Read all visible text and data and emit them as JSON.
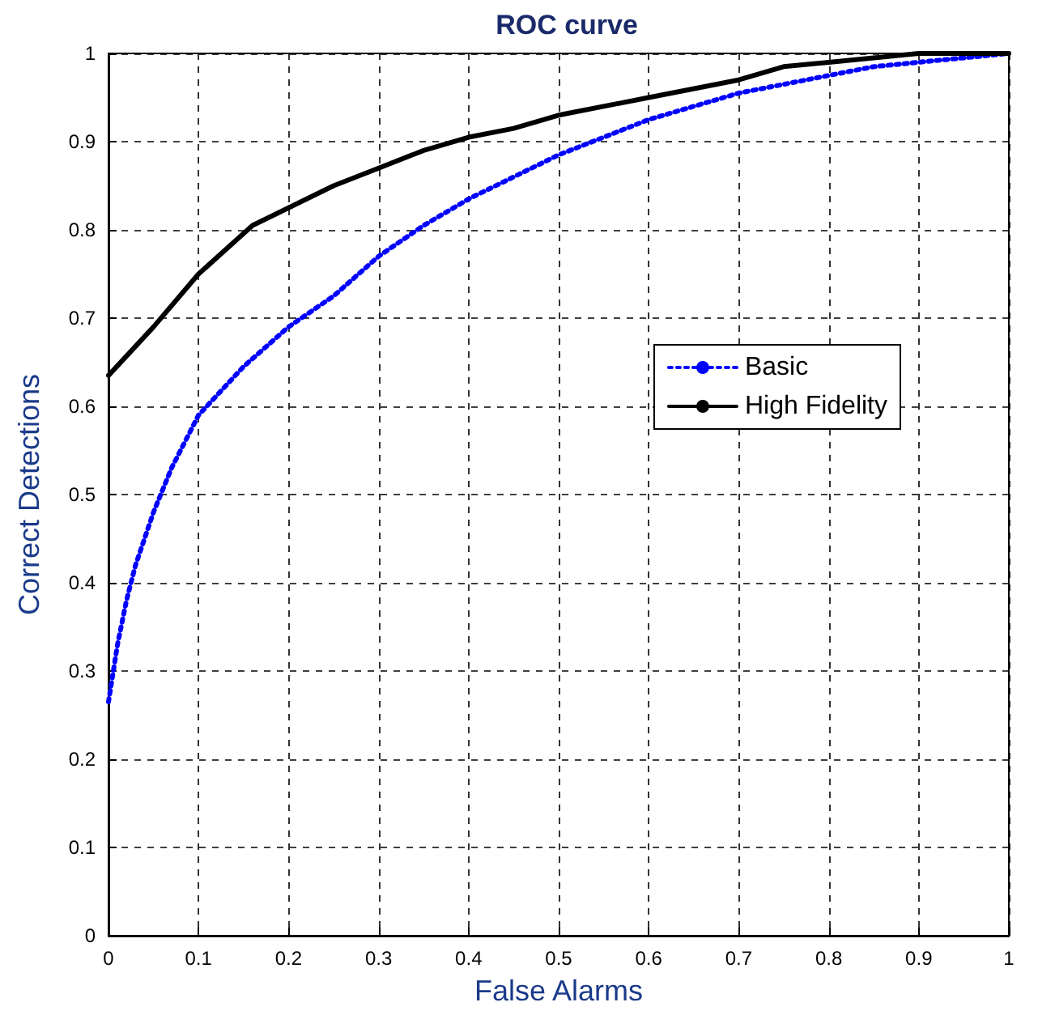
{
  "chart_data": {
    "type": "line",
    "title": "ROC curve",
    "xlabel": "False Alarms",
    "ylabel": "Correct Detections",
    "xlim": [
      0,
      1
    ],
    "ylim": [
      0,
      1
    ],
    "xticks": [
      0,
      0.1,
      0.2,
      0.3,
      0.4,
      0.5,
      0.6,
      0.7,
      0.8,
      0.9,
      1
    ],
    "yticks": [
      0,
      0.1,
      0.2,
      0.3,
      0.4,
      0.5,
      0.6,
      0.7,
      0.8,
      0.9,
      1
    ],
    "grid": true,
    "legend": "right",
    "marker": "none",
    "series": [
      {
        "name": "Basic",
        "color": "#0000ff",
        "line_style": "dotted",
        "x": [
          0,
          0.01,
          0.02,
          0.03,
          0.05,
          0.07,
          0.1,
          0.15,
          0.2,
          0.25,
          0.3,
          0.35,
          0.4,
          0.45,
          0.5,
          0.55,
          0.6,
          0.65,
          0.7,
          0.75,
          0.8,
          0.85,
          0.9,
          0.95,
          1
        ],
        "values": [
          0.265,
          0.33,
          0.38,
          0.42,
          0.48,
          0.53,
          0.59,
          0.645,
          0.69,
          0.725,
          0.77,
          0.805,
          0.835,
          0.86,
          0.885,
          0.905,
          0.925,
          0.94,
          0.955,
          0.965,
          0.975,
          0.985,
          0.99,
          0.995,
          1
        ]
      },
      {
        "name": "High Fidelity",
        "color": "#000000",
        "line_style": "solid",
        "x": [
          0,
          0.05,
          0.1,
          0.16,
          0.2,
          0.25,
          0.3,
          0.35,
          0.4,
          0.45,
          0.5,
          0.6,
          0.7,
          0.75,
          0.8,
          0.9,
          1
        ],
        "values": [
          0.635,
          0.69,
          0.75,
          0.805,
          0.825,
          0.85,
          0.87,
          0.89,
          0.905,
          0.915,
          0.93,
          0.95,
          0.97,
          0.985,
          0.99,
          1,
          1
        ]
      }
    ]
  }
}
